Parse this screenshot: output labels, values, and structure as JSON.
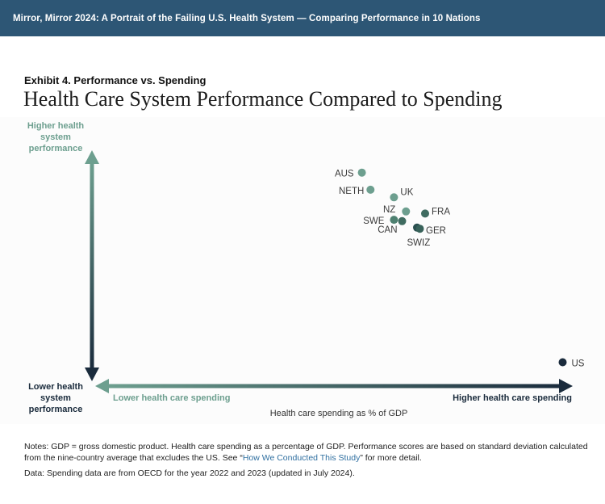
{
  "header": {
    "banner_title": "Mirror, Mirror 2024: A Portrait of the Failing U.S. Health System — Comparing Performance in 10 Nations"
  },
  "exhibit": {
    "label": "Exhibit 4. Performance vs. Spending",
    "title": "Health Care System Performance Compared to Spending"
  },
  "chart_data": {
    "type": "scatter",
    "title": "Health Care System Performance Compared to Spending",
    "xlabel": "Health care spending as % of GDP",
    "ylabel": "Health system performance",
    "x_low_label": "Lower health care spending",
    "x_high_label": "Higher health care spending",
    "y_high_label": "Higher health system performance",
    "y_low_label": "Lower health system performance",
    "xlim": [
      0,
      100
    ],
    "ylim": [
      0,
      100
    ],
    "grid": false,
    "points": [
      {
        "label": "AUS",
        "x": 56.0,
        "y": 90.3,
        "color": "#6d9f8f"
      },
      {
        "label": "NETH",
        "x": 57.8,
        "y": 82.9,
        "color": "#6d9f8f"
      },
      {
        "label": "UK",
        "x": 62.7,
        "y": 79.6,
        "color": "#6d9f8f"
      },
      {
        "label": "NZ",
        "x": 65.2,
        "y": 73.5,
        "color": "#6d9f8f"
      },
      {
        "label": "FRA",
        "x": 69.2,
        "y": 72.6,
        "color": "#3f6b60"
      },
      {
        "label": "SWE",
        "x": 62.7,
        "y": 69.9,
        "color": "#4e8070"
      },
      {
        "label": "CAN",
        "x": 64.4,
        "y": 69.3,
        "color": "#3f6b60"
      },
      {
        "label": "GER",
        "x": 67.5,
        "y": 66.5,
        "color": "#2a4f4f"
      },
      {
        "label": "SWIZ",
        "x": 68.1,
        "y": 66.0,
        "color": "#38625a"
      },
      {
        "label": "US",
        "x": 97.9,
        "y": 8.2,
        "color": "#1a2b3c"
      }
    ]
  },
  "notes": {
    "text_before": "Notes: GDP = gross domestic product. Health care spending as a percentage of GDP. Performance scores are based on standard deviation calculated from the nine-country average that excludes the US. See “",
    "link": "How We Conducted This Study",
    "text_after": "” for more detail.",
    "data_source": "Data: Spending data are from OECD for the year 2022 and 2023 (updated in July 2024)."
  },
  "colors": {
    "banner": "#2d5675",
    "axis_light": "#6d9f8f",
    "axis_dark": "#1a2b3c"
  }
}
